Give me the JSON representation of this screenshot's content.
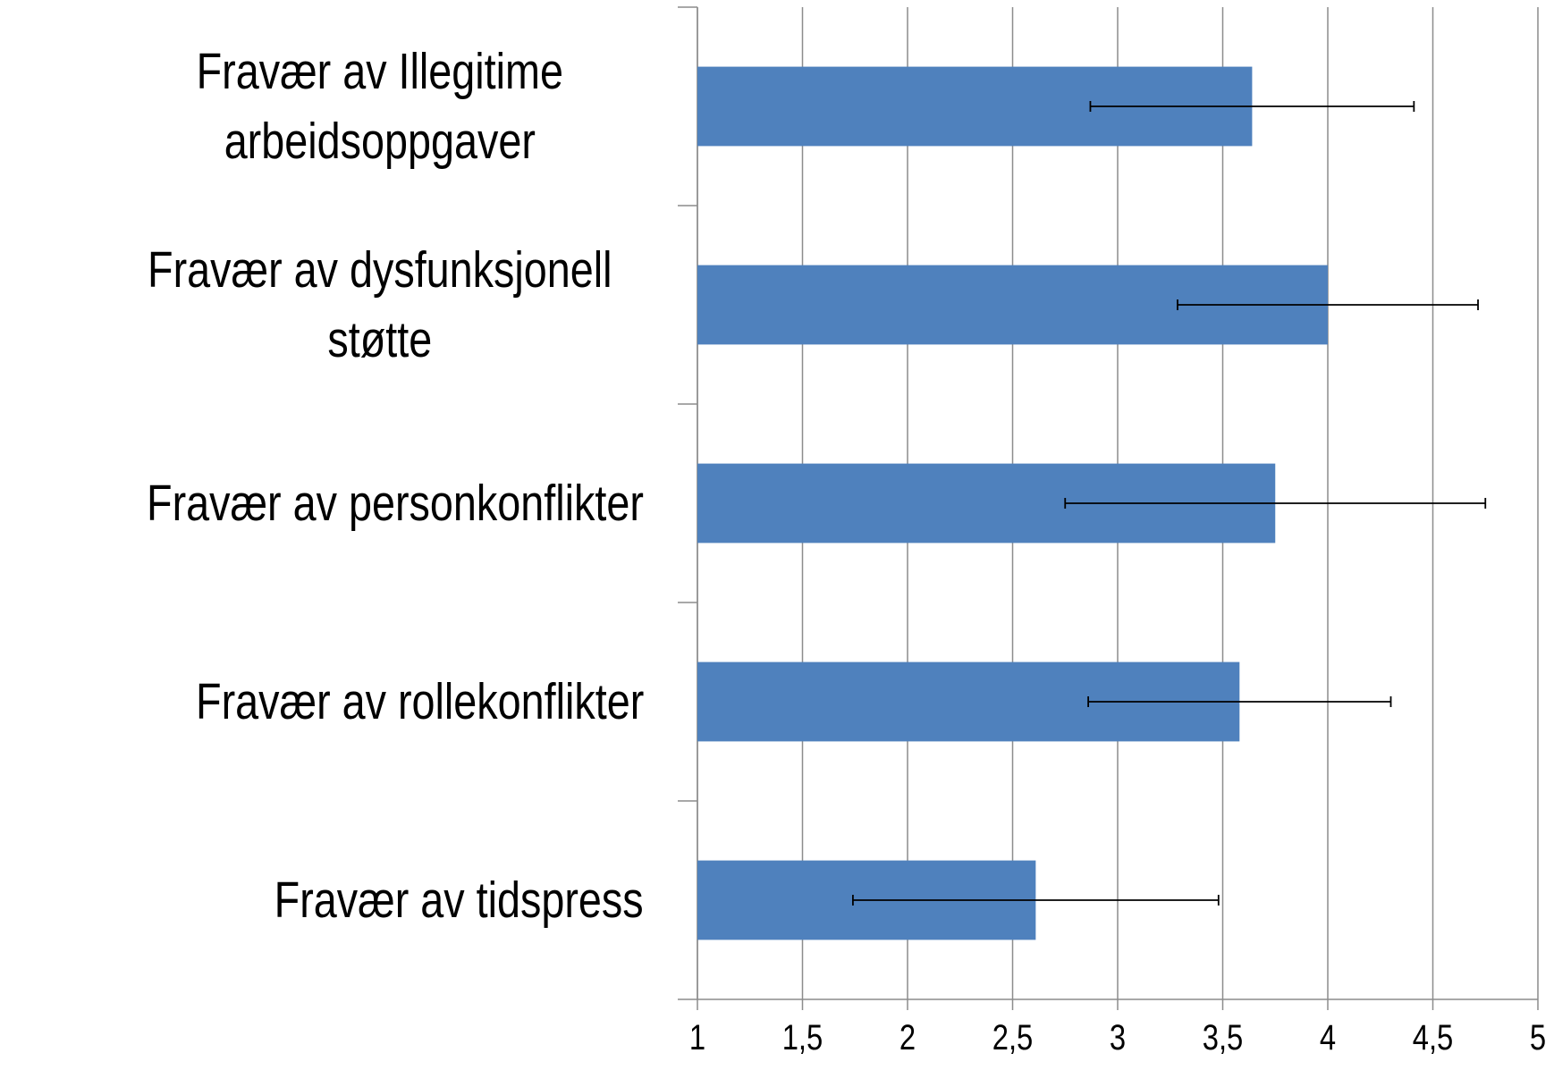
{
  "chart_data": {
    "type": "barh",
    "categories": [
      "Fravær av Illegitime arbeidsoppgaver",
      "Fravær av dysfunksjonell støtte",
      "Fravær av personkonflikter",
      "Fravær av rollekonflikter",
      "Fravær av tidspress"
    ],
    "values": [
      3.64,
      4.0,
      3.75,
      3.58,
      2.61
    ],
    "errors": [
      0.77,
      0.715,
      1.0,
      0.72,
      0.87
    ],
    "color": "#4f81bd",
    "xlim": [
      1,
      5
    ],
    "xticks": [
      1,
      {
        "value": 1.5,
        "label": "1,5"
      },
      2,
      {
        "value": 2.5,
        "label": "2,5"
      },
      3,
      {
        "value": 3.5,
        "label": "3,5"
      },
      4,
      {
        "value": 4.5,
        "label": "4,5"
      },
      5
    ],
    "grid": true
  }
}
